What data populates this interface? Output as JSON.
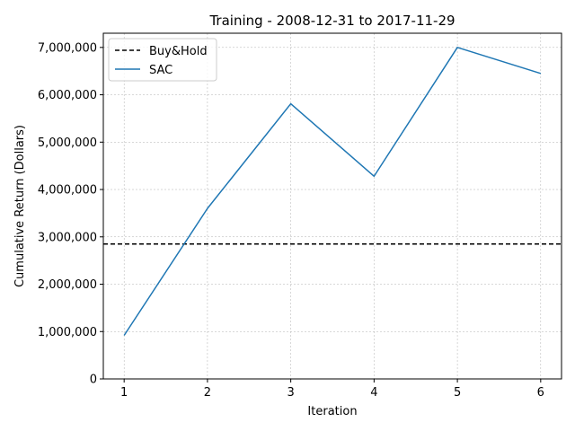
{
  "chart_data": {
    "type": "line",
    "title": "Training - 2008-12-31 to 2017-11-29",
    "xlabel": "Iteration",
    "ylabel": "Cumulative Return (Dollars)",
    "x": [
      1,
      2,
      3,
      4,
      5,
      6
    ],
    "xlim": [
      0.75,
      6.25
    ],
    "ylim": [
      0,
      7300000
    ],
    "xticks": [
      1,
      2,
      3,
      4,
      5,
      6
    ],
    "xtick_labels": [
      "1",
      "2",
      "3",
      "4",
      "5",
      "6"
    ],
    "yticks": [
      0,
      1000000,
      2000000,
      3000000,
      4000000,
      5000000,
      6000000,
      7000000
    ],
    "ytick_labels": [
      "0",
      "1,000,000",
      "2,000,000",
      "3,000,000",
      "4,000,000",
      "5,000,000",
      "6,000,000",
      "7,000,000"
    ],
    "grid": true,
    "legend_position": "top-left",
    "series": [
      {
        "name": "Buy&Hold",
        "kind": "hline",
        "value": 2850000,
        "color": "#000000",
        "style": "dashed"
      },
      {
        "name": "SAC",
        "kind": "line",
        "values": [
          920000,
          3600000,
          5810000,
          4280000,
          7000000,
          6450000
        ],
        "color": "#1f77b4",
        "style": "solid"
      }
    ]
  }
}
